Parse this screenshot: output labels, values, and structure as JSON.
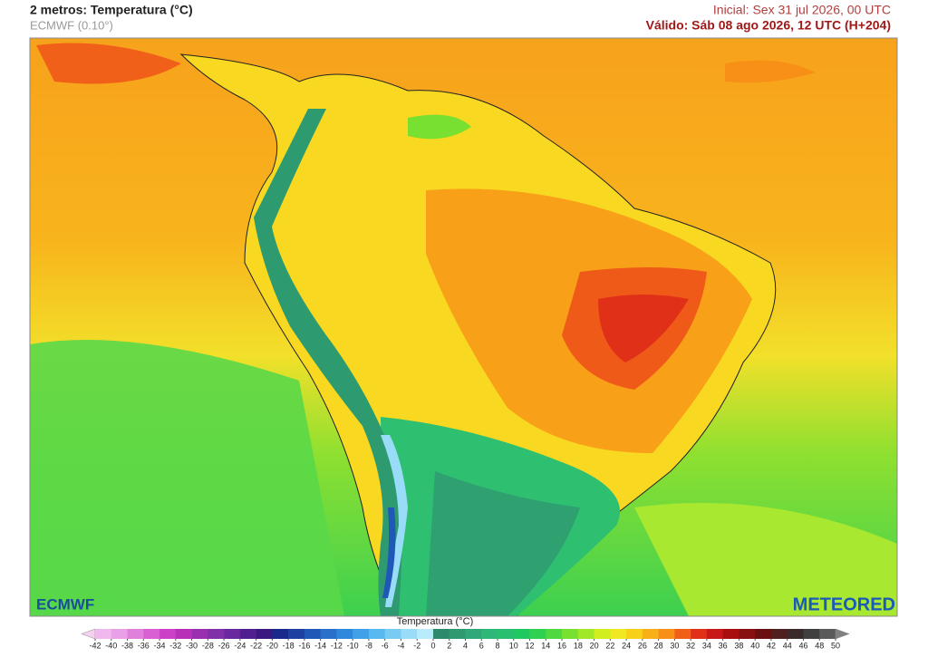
{
  "header": {
    "title": "2 metros: Temperatura (°C)",
    "model": "ECMWF (0.10°)",
    "initial": "Inicial: Sex 31 jul 2026, 00 UTC",
    "valid": "Válido: Sáb 08 ago 2026, 12 UTC (H+204)"
  },
  "logos": {
    "left": "ECMWF",
    "right": "METEORED"
  },
  "colorbar": {
    "title": "Temperatura (°C)",
    "ticks": [
      -42,
      -40,
      -38,
      -36,
      -34,
      -32,
      -30,
      -28,
      -26,
      -24,
      -22,
      -20,
      -18,
      -16,
      -14,
      -12,
      -10,
      -8,
      -6,
      -4,
      -2,
      0,
      2,
      4,
      6,
      8,
      10,
      12,
      14,
      16,
      18,
      20,
      22,
      24,
      26,
      28,
      30,
      32,
      34,
      36,
      38,
      40,
      42,
      44,
      46,
      48,
      50
    ],
    "colors": [
      "#f5d0f0",
      "#f0b8ec",
      "#eaa0e6",
      "#e080dc",
      "#d860d2",
      "#cc40c8",
      "#b830b8",
      "#9a30b0",
      "#8030a8",
      "#6a28a0",
      "#502090",
      "#3a1880",
      "#1a2a8a",
      "#1e40a0",
      "#2058b8",
      "#2870cc",
      "#3088dc",
      "#40a0e8",
      "#58b8f0",
      "#78ccf4",
      "#98dcf8",
      "#b8ecfc",
      "#2e8a6c",
      "#2f9a70",
      "#30a878",
      "#2eb878",
      "#28c070",
      "#20c860",
      "#30d050",
      "#50d840",
      "#78e030",
      "#a0e828",
      "#d0ee20",
      "#f0e820",
      "#f8d018",
      "#f8b018",
      "#f89018",
      "#f06018",
      "#e03018",
      "#c81818",
      "#a81010",
      "#881010",
      "#6a1010",
      "#502020",
      "#3a2a2a",
      "#404040",
      "#5a5a5a",
      "#808080"
    ]
  }
}
